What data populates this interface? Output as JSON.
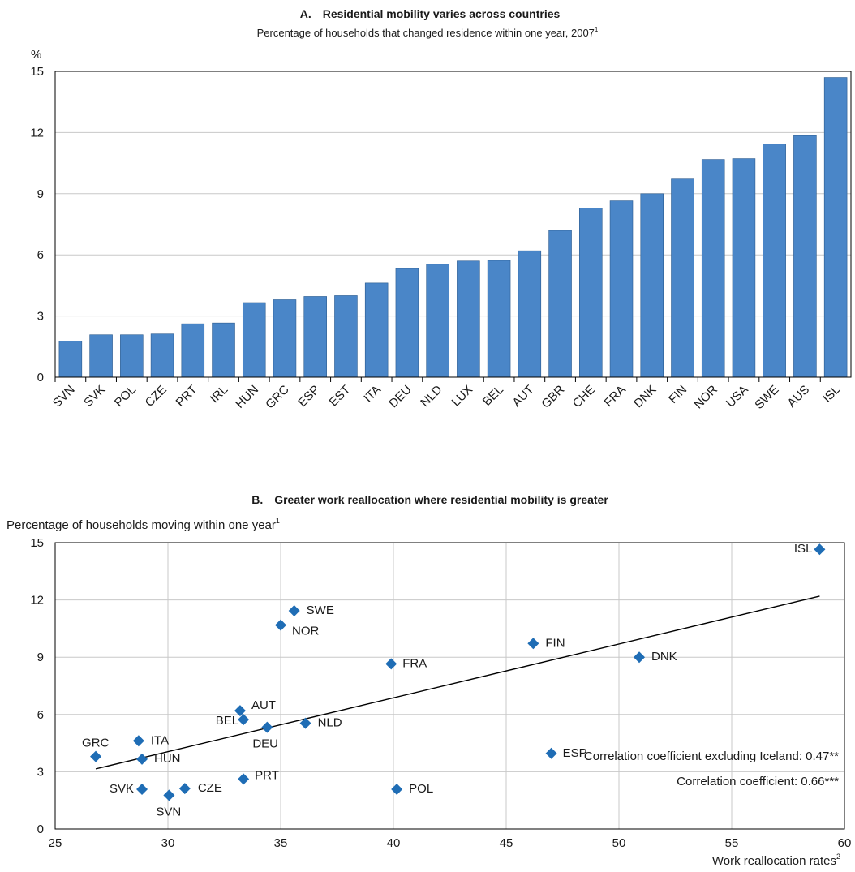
{
  "chart_data": [
    {
      "type": "bar",
      "title": "A. Residential mobility varies across countries",
      "subtitle": "Percentage of households that changed residence within one year, 2007",
      "subtitle_sup": "1",
      "ylabel": "%",
      "ylim": [
        0,
        15
      ],
      "yticks": [
        0,
        3,
        6,
        9,
        12,
        15
      ],
      "grid": "horizontal",
      "bar_color": "#4a86c8",
      "categories": [
        "SVN",
        "SVK",
        "POL",
        "CZE",
        "PRT",
        "IRL",
        "HUN",
        "GRC",
        "ESP",
        "EST",
        "ITA",
        "DEU",
        "NLD",
        "LUX",
        "BEL",
        "AUT",
        "GBR",
        "CHE",
        "FRA",
        "DNK",
        "FIN",
        "NOR",
        "USA",
        "SWE",
        "AUS",
        "ISL"
      ],
      "values": [
        1.77,
        2.08,
        2.08,
        2.12,
        2.62,
        2.66,
        3.66,
        3.8,
        3.96,
        4.0,
        4.62,
        5.33,
        5.54,
        5.7,
        5.73,
        6.2,
        7.2,
        8.3,
        8.65,
        9.0,
        9.72,
        10.68,
        10.72,
        11.43,
        11.85,
        14.7
      ]
    },
    {
      "type": "scatter",
      "title": "B. Greater work reallocation where residential mobility is greater",
      "ylabel": "Percentage of households moving within one year",
      "ylabel_sup": "1",
      "xlabel": "Work reallocation rates",
      "xlabel_sup": "2",
      "xlim": [
        25,
        60
      ],
      "ylim": [
        0,
        15
      ],
      "xticks": [
        25,
        30,
        35,
        40,
        45,
        50,
        55,
        60
      ],
      "yticks": [
        0,
        3,
        6,
        9,
        12,
        15
      ],
      "grid": "both",
      "marker_color": "#1f6db5",
      "points": [
        {
          "label": "ISL",
          "x": 58.9,
          "y": 14.65
        },
        {
          "label": "SWE",
          "x": 35.6,
          "y": 11.43
        },
        {
          "label": "NOR",
          "x": 35.0,
          "y": 10.68
        },
        {
          "label": "FIN",
          "x": 46.2,
          "y": 9.72
        },
        {
          "label": "DNK",
          "x": 50.9,
          "y": 9.0
        },
        {
          "label": "FRA",
          "x": 39.9,
          "y": 8.65
        },
        {
          "label": "AUT",
          "x": 33.2,
          "y": 6.2
        },
        {
          "label": "BEL",
          "x": 33.35,
          "y": 5.73
        },
        {
          "label": "DEU",
          "x": 34.4,
          "y": 5.33
        },
        {
          "label": "NLD",
          "x": 36.1,
          "y": 5.54
        },
        {
          "label": "GRC",
          "x": 26.8,
          "y": 3.8
        },
        {
          "label": "ITA",
          "x": 28.7,
          "y": 4.62
        },
        {
          "label": "HUN",
          "x": 28.85,
          "y": 3.66
        },
        {
          "label": "ESP",
          "x": 47.0,
          "y": 3.96
        },
        {
          "label": "PRT",
          "x": 33.35,
          "y": 2.62
        },
        {
          "label": "SVK",
          "x": 28.85,
          "y": 2.08
        },
        {
          "label": "SVN",
          "x": 30.05,
          "y": 1.77
        },
        {
          "label": "CZE",
          "x": 30.75,
          "y": 2.12
        },
        {
          "label": "POL",
          "x": 40.15,
          "y": 2.08
        }
      ],
      "trendline": {
        "x": [
          26.8,
          58.9
        ],
        "y": [
          3.15,
          12.2
        ]
      },
      "annotations": [
        "Correlation coefficient  excluding Iceland: 0.47**",
        "Correlation coefficient: 0.66***"
      ]
    }
  ]
}
